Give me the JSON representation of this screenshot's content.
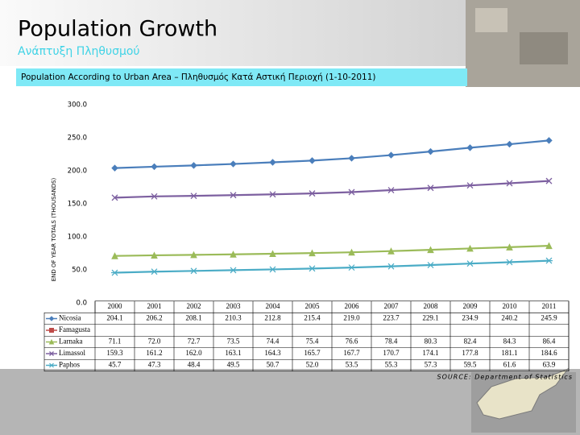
{
  "header": {
    "title": "Population Growth",
    "subtitle": "Ανάπτυξη Πληθυσμού",
    "banner": "Population According to Urban Area – Πληθυσμός Κατά Αστική Περιοχή (1-10-2011)"
  },
  "chart_data": {
    "type": "line",
    "y_label": "END OF YEAR TOTALS (THOUSANDS)",
    "categories": [
      "2000",
      "2001",
      "2002",
      "2003",
      "2004",
      "2005",
      "2006",
      "2007",
      "2008",
      "2009",
      "2010",
      "2011"
    ],
    "ylim": [
      0,
      300
    ],
    "yticks": [
      {
        "value": 0,
        "label": "0.0"
      },
      {
        "value": 50,
        "label": "50.0"
      },
      {
        "value": 100,
        "label": "100.0"
      },
      {
        "value": 150,
        "label": "150.0"
      },
      {
        "value": 200,
        "label": "200.0"
      },
      {
        "value": 250,
        "label": "250.0"
      },
      {
        "value": 300,
        "label": "300.0"
      }
    ],
    "series": [
      {
        "name": "Nicosia",
        "color": "#4a7ebb",
        "marker": "diamond",
        "values": [
          204.1,
          206.2,
          208.1,
          210.3,
          212.8,
          215.4,
          219.0,
          223.7,
          229.1,
          234.9,
          240.2,
          245.9
        ],
        "value_labels": [
          "204.1",
          "206.2",
          "208.1",
          "210.3",
          "212.8",
          "215.4",
          "219.0",
          "223.7",
          "229.1",
          "234.9",
          "240.2",
          "245.9"
        ]
      },
      {
        "name": "Famagusta",
        "color": "#be4b48",
        "marker": "square",
        "values": [
          null,
          null,
          null,
          null,
          null,
          null,
          null,
          null,
          null,
          null,
          null,
          null
        ]
      },
      {
        "name": "Larnaka",
        "color": "#9bbb59",
        "marker": "triangle",
        "values": [
          71.1,
          72.0,
          72.7,
          73.5,
          74.4,
          75.4,
          76.6,
          78.4,
          80.3,
          82.4,
          84.3,
          86.4
        ],
        "value_labels": [
          "71.1",
          "72.0",
          "72.7",
          "73.5",
          "74.4",
          "75.4",
          "76.6",
          "78.4",
          "80.3",
          "82.4",
          "84.3",
          "86.4"
        ]
      },
      {
        "name": "Limassol",
        "color": "#7d60a0",
        "marker": "x",
        "values": [
          159.3,
          161.2,
          162.0,
          163.1,
          164.3,
          165.7,
          167.7,
          170.7,
          174.1,
          177.8,
          181.1,
          184.6
        ],
        "value_labels": [
          "159.3",
          "161.2",
          "162.0",
          "163.1",
          "164.3",
          "165.7",
          "167.7",
          "170.7",
          "174.1",
          "177.8",
          "181.1",
          "184.6"
        ]
      },
      {
        "name": "Paphos",
        "color": "#4bacc6",
        "marker": "star",
        "values": [
          45.7,
          47.3,
          48.4,
          49.5,
          50.7,
          52.0,
          53.5,
          55.3,
          57.3,
          59.5,
          61.6,
          63.9
        ],
        "value_labels": [
          "45.7",
          "47.3",
          "48.4",
          "49.5",
          "50.7",
          "52.0",
          "53.5",
          "55.3",
          "57.3",
          "59.5",
          "61.6",
          "63.9"
        ]
      }
    ],
    "source": "SOURCE: Department of Statistics"
  }
}
